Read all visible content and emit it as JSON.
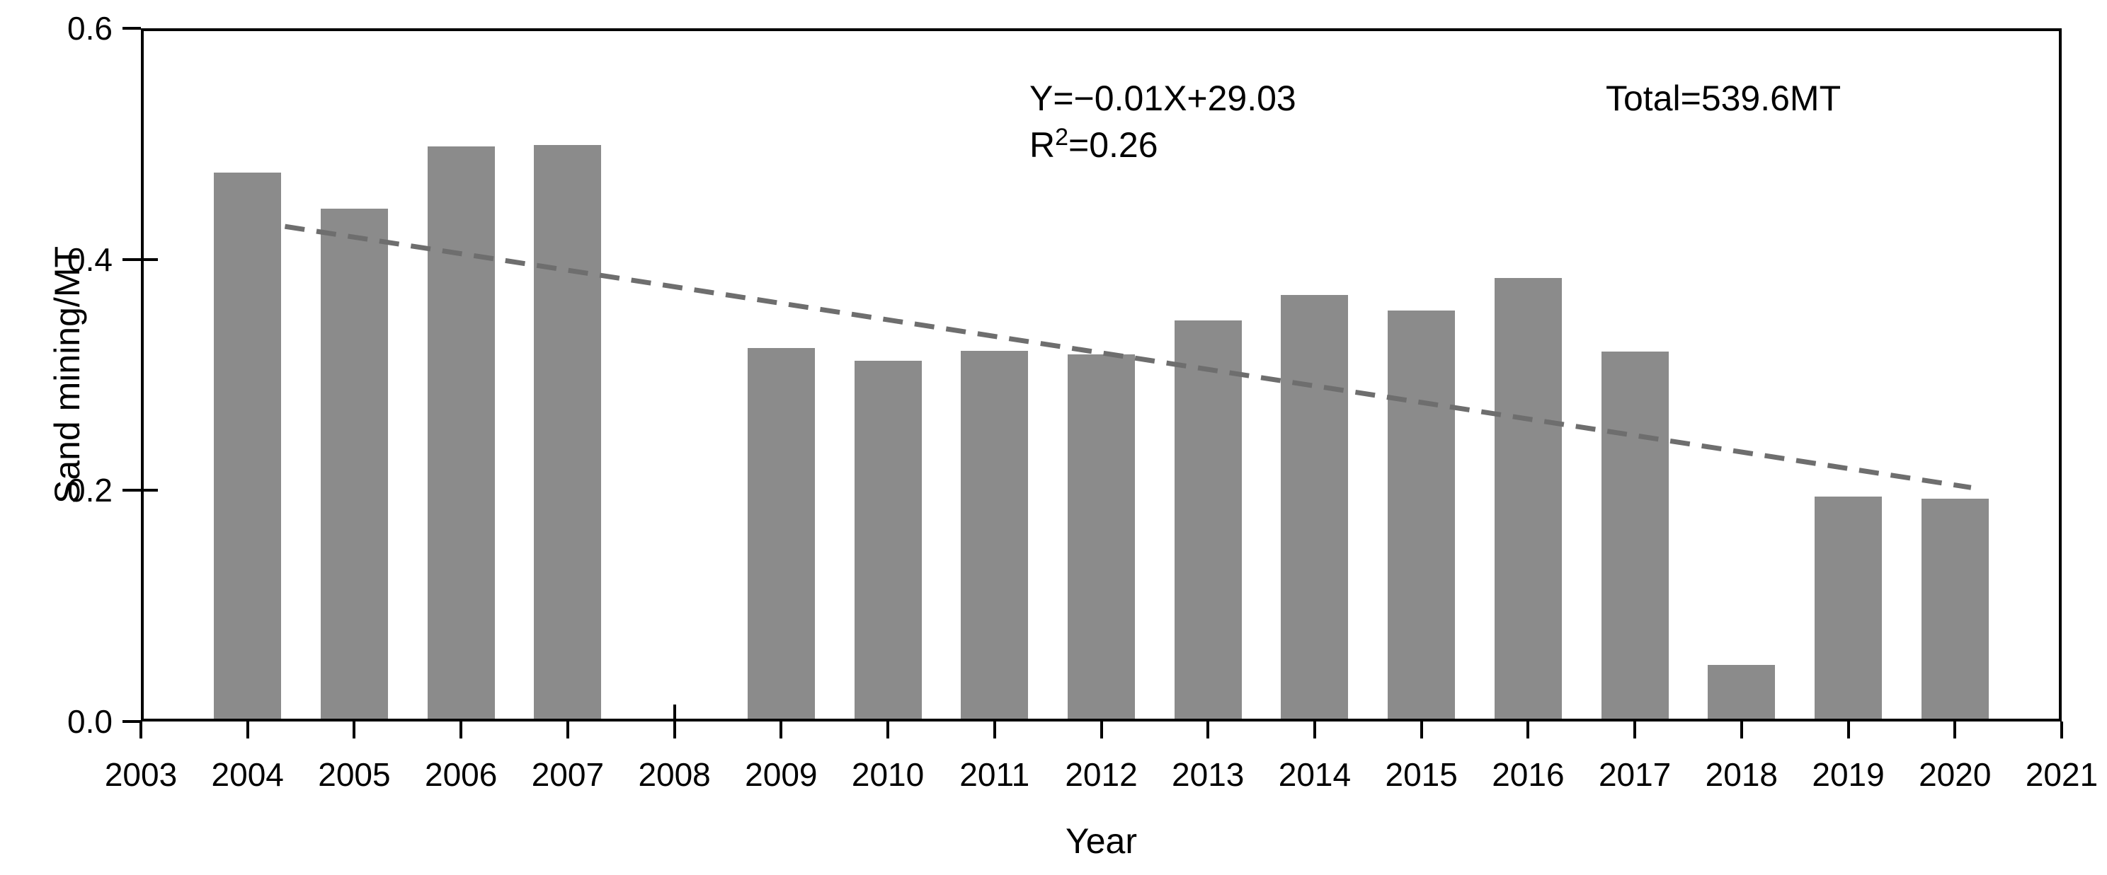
{
  "figure": {
    "background": "#ffffff",
    "text_color": "#000000"
  },
  "chart_data": {
    "type": "bar",
    "title": "",
    "xlabel": "Year",
    "ylabel": "Sand mining/MT",
    "categories": [
      2004,
      2005,
      2006,
      2007,
      2008,
      2009,
      2010,
      2011,
      2012,
      2013,
      2014,
      2015,
      2016,
      2017,
      2018,
      2019,
      2020
    ],
    "values": [
      0.475,
      0.444,
      0.498,
      0.499,
      0.0,
      0.323,
      0.312,
      0.321,
      0.318,
      0.347,
      0.369,
      0.356,
      0.384,
      0.32,
      0.049,
      0.195,
      0.193
    ],
    "x_ticks": [
      2003,
      2004,
      2005,
      2006,
      2007,
      2008,
      2009,
      2010,
      2011,
      2012,
      2013,
      2014,
      2015,
      2016,
      2017,
      2018,
      2019,
      2020,
      2021
    ],
    "y_ticks": [
      0.0,
      0.2,
      0.4,
      0.6
    ],
    "y_tick_labels": [
      "0.0",
      "0.2",
      "0.4",
      "0.6"
    ],
    "xlim": [
      2003,
      2021
    ],
    "ylim": [
      0,
      0.6
    ],
    "grid": false,
    "legend": "none",
    "bar_color": "#8b8b8b",
    "bar_width_years": 0.63,
    "trendline": {
      "x1": 2004.35,
      "v1": 0.4285,
      "x2": 2020.15,
      "v2": 0.2025,
      "color": "#6e6e6e",
      "style": "dashed"
    },
    "annotations": {
      "equation": "Y=−0.01X+29.03",
      "r2_base": "R",
      "r2_sup": "2",
      "r2_rest": "=0.26",
      "total": "Total=539.6MT"
    }
  }
}
